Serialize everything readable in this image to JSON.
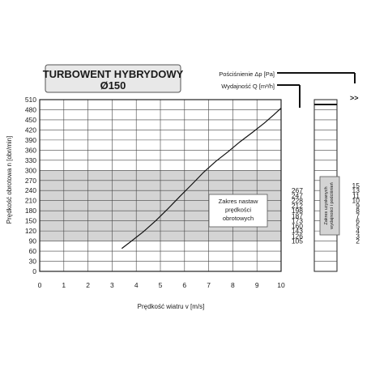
{
  "chart_data": {
    "type": "line",
    "title": "TURBOWENT HYBRYDOWY",
    "subtitle": "Ø150",
    "xlabel": "Prędkość wiatru v [m/s]",
    "ylabel": "Prędkość obrotowa n [obr/min]",
    "xlim": [
      0,
      10
    ],
    "ylim": [
      0,
      510
    ],
    "x_ticks": [
      "0",
      "1",
      "2",
      "3",
      "4",
      "5",
      "6",
      "7",
      "8",
      "9",
      "10"
    ],
    "y_ticks": [
      "0",
      "30",
      "60",
      "90",
      "120",
      "150",
      "180",
      "210",
      "240",
      "270",
      "300",
      "330",
      "360",
      "390",
      "420",
      "450",
      "480",
      "510"
    ],
    "grid": true,
    "shaded_band": {
      "y_from": 90,
      "y_to": 300,
      "label_lines": [
        "Zakres nastaw",
        "prędkości",
        "obrotowych"
      ]
    },
    "series": [
      {
        "x": [
          3.4,
          3.8,
          4.3,
          4.8,
          5.3,
          5.8,
          6.3,
          6.8,
          7.3,
          7.8,
          8.3,
          8.8,
          9.3,
          9.7,
          10.0
        ],
        "y": [
          68,
          90,
          118,
          150,
          185,
          222,
          258,
          295,
          327,
          355,
          385,
          412,
          440,
          465,
          485
        ]
      }
    ],
    "flow_scale": {
      "label": "Wydajność Q [m³/h]",
      "ticks": [
        "105",
        "126",
        "143",
        "160",
        "173",
        "187",
        "198",
        "212",
        "228",
        "247",
        "267"
      ],
      "tick_at_n": [
        90,
        105,
        120,
        135,
        150,
        165,
        180,
        195,
        210,
        225,
        240
      ]
    },
    "pressure_scale": {
      "label": "Pościśnienie Δp [Pa]",
      "ticks": [
        "2",
        "3",
        "4",
        "5",
        "6",
        "7",
        "8",
        "9",
        "10",
        "11",
        "13",
        "15"
      ],
      "tick_at_n": [
        90,
        105,
        120,
        135,
        150,
        165,
        180,
        195,
        210,
        225,
        240,
        255
      ],
      "band_label_lines": [
        "Zakres uzyskanych",
        "wydajności i podciśnień"
      ]
    },
    "arrow_glyph": ">>"
  }
}
